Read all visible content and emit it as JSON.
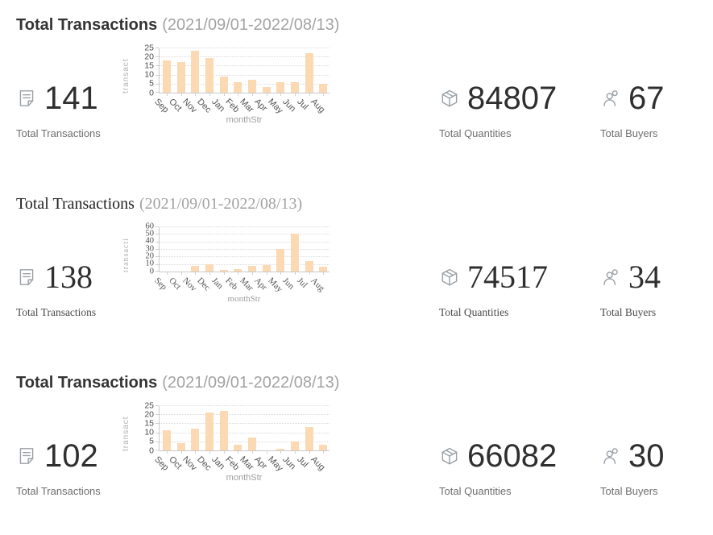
{
  "accent_color": "#fbd9b3",
  "axis_color": "#c9c9c9",
  "sections": [
    {
      "title": "Total Transactions",
      "date_range": "(2021/09/01-2022/08/13)",
      "transactions": {
        "value": "141",
        "label": "Total Transactions"
      },
      "quantities": {
        "value": "84807",
        "label": "Total Quantities"
      },
      "buyers": {
        "value": "67",
        "label": "Total Buyers"
      }
    },
    {
      "title": "Total Transactions",
      "date_range": "(2021/09/01-2022/08/13)",
      "transactions": {
        "value": "138",
        "label": "Total Transactions"
      },
      "quantities": {
        "value": "74517",
        "label": "Total Quantities"
      },
      "buyers": {
        "value": "34",
        "label": "Total Buyers"
      }
    },
    {
      "title": "Total Transactions",
      "date_range": "(2021/09/01-2022/08/13)",
      "transactions": {
        "value": "102",
        "label": "Total Transactions"
      },
      "quantities": {
        "value": "66082",
        "label": "Total Quantities"
      },
      "buyers": {
        "value": "30",
        "label": "Total Buyers"
      }
    }
  ],
  "chart_data": [
    {
      "type": "bar",
      "title": "Total Transactions (2021/09/01-2022/08/13)",
      "categories": [
        "Sep",
        "Oct",
        "Nov",
        "Dec",
        "Jan",
        "Feb",
        "Mar",
        "Apr",
        "May",
        "Jun",
        "Jul",
        "Aug"
      ],
      "values": [
        18,
        17,
        23,
        19,
        9,
        6,
        7,
        3,
        6,
        6,
        22,
        5
      ],
      "xlabel": "monthStr",
      "ylabel": "transact",
      "ylim": [
        0,
        25
      ],
      "yticks": [
        0,
        5,
        10,
        15,
        20,
        25
      ],
      "grid": "dotted",
      "bar_color": "#fbd9b3"
    },
    {
      "type": "bar",
      "title": "Total Transactions (2021/09/01-2022/08/13)",
      "categories": [
        "Sep",
        "Oct",
        "Nov",
        "Dec",
        "Jan",
        "Feb",
        "Mar",
        "Apr",
        "May",
        "Jun",
        "Jul",
        "Aug"
      ],
      "values": [
        0,
        0,
        7,
        10,
        2,
        3,
        7,
        9,
        30,
        50,
        14,
        6
      ],
      "xlabel": "monthStr",
      "ylabel": "transacti",
      "ylim": [
        0,
        60
      ],
      "yticks": [
        0,
        10,
        20,
        30,
        40,
        50,
        60
      ],
      "grid": "dotted",
      "bar_color": "#fbd9b3"
    },
    {
      "type": "bar",
      "title": "Total Transactions (2021/09/01-2022/08/13)",
      "categories": [
        "Sep",
        "Oct",
        "Nov",
        "Dec",
        "Jan",
        "Feb",
        "Mar",
        "Apr",
        "May",
        "Jun",
        "Jul",
        "Aug"
      ],
      "values": [
        11,
        4,
        12,
        21,
        22,
        3,
        7,
        0,
        1,
        5,
        13,
        3
      ],
      "xlabel": "monthStr",
      "ylabel": "transact",
      "ylim": [
        0,
        25
      ],
      "yticks": [
        0,
        5,
        10,
        15,
        20,
        25
      ],
      "grid": "dotted",
      "bar_color": "#fbd9b3"
    }
  ]
}
